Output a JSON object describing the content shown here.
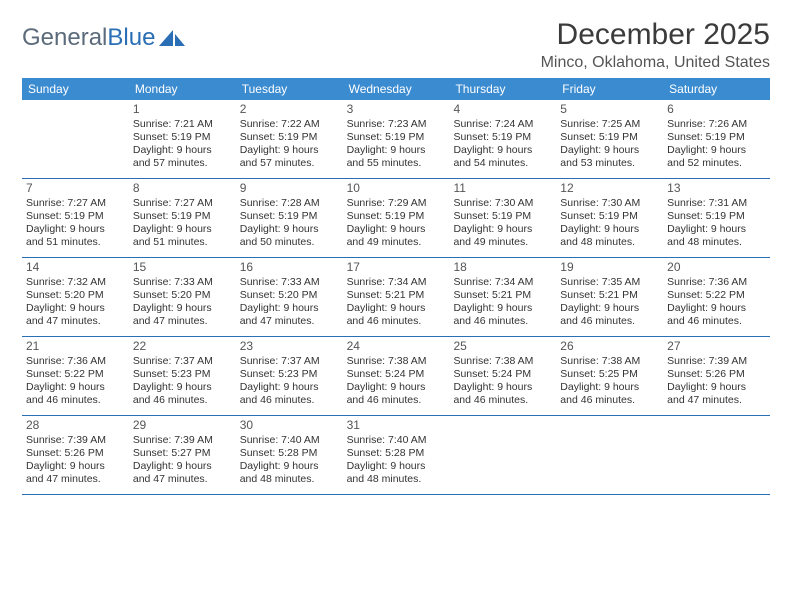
{
  "logo": {
    "part1": "General",
    "part2": "Blue"
  },
  "title": "December 2025",
  "location": "Minco, Oklahoma, United States",
  "header_color": "#3b8bd1",
  "border_color": "#2a6fb5",
  "weekdays": [
    "Sunday",
    "Monday",
    "Tuesday",
    "Wednesday",
    "Thursday",
    "Friday",
    "Saturday"
  ],
  "weeks": [
    [
      {
        "n": "",
        "sr": "",
        "ss": "",
        "dl": ""
      },
      {
        "n": "1",
        "sr": "Sunrise: 7:21 AM",
        "ss": "Sunset: 5:19 PM",
        "dl": "Daylight: 9 hours and 57 minutes."
      },
      {
        "n": "2",
        "sr": "Sunrise: 7:22 AM",
        "ss": "Sunset: 5:19 PM",
        "dl": "Daylight: 9 hours and 57 minutes."
      },
      {
        "n": "3",
        "sr": "Sunrise: 7:23 AM",
        "ss": "Sunset: 5:19 PM",
        "dl": "Daylight: 9 hours and 55 minutes."
      },
      {
        "n": "4",
        "sr": "Sunrise: 7:24 AM",
        "ss": "Sunset: 5:19 PM",
        "dl": "Daylight: 9 hours and 54 minutes."
      },
      {
        "n": "5",
        "sr": "Sunrise: 7:25 AM",
        "ss": "Sunset: 5:19 PM",
        "dl": "Daylight: 9 hours and 53 minutes."
      },
      {
        "n": "6",
        "sr": "Sunrise: 7:26 AM",
        "ss": "Sunset: 5:19 PM",
        "dl": "Daylight: 9 hours and 52 minutes."
      }
    ],
    [
      {
        "n": "7",
        "sr": "Sunrise: 7:27 AM",
        "ss": "Sunset: 5:19 PM",
        "dl": "Daylight: 9 hours and 51 minutes."
      },
      {
        "n": "8",
        "sr": "Sunrise: 7:27 AM",
        "ss": "Sunset: 5:19 PM",
        "dl": "Daylight: 9 hours and 51 minutes."
      },
      {
        "n": "9",
        "sr": "Sunrise: 7:28 AM",
        "ss": "Sunset: 5:19 PM",
        "dl": "Daylight: 9 hours and 50 minutes."
      },
      {
        "n": "10",
        "sr": "Sunrise: 7:29 AM",
        "ss": "Sunset: 5:19 PM",
        "dl": "Daylight: 9 hours and 49 minutes."
      },
      {
        "n": "11",
        "sr": "Sunrise: 7:30 AM",
        "ss": "Sunset: 5:19 PM",
        "dl": "Daylight: 9 hours and 49 minutes."
      },
      {
        "n": "12",
        "sr": "Sunrise: 7:30 AM",
        "ss": "Sunset: 5:19 PM",
        "dl": "Daylight: 9 hours and 48 minutes."
      },
      {
        "n": "13",
        "sr": "Sunrise: 7:31 AM",
        "ss": "Sunset: 5:19 PM",
        "dl": "Daylight: 9 hours and 48 minutes."
      }
    ],
    [
      {
        "n": "14",
        "sr": "Sunrise: 7:32 AM",
        "ss": "Sunset: 5:20 PM",
        "dl": "Daylight: 9 hours and 47 minutes."
      },
      {
        "n": "15",
        "sr": "Sunrise: 7:33 AM",
        "ss": "Sunset: 5:20 PM",
        "dl": "Daylight: 9 hours and 47 minutes."
      },
      {
        "n": "16",
        "sr": "Sunrise: 7:33 AM",
        "ss": "Sunset: 5:20 PM",
        "dl": "Daylight: 9 hours and 47 minutes."
      },
      {
        "n": "17",
        "sr": "Sunrise: 7:34 AM",
        "ss": "Sunset: 5:21 PM",
        "dl": "Daylight: 9 hours and 46 minutes."
      },
      {
        "n": "18",
        "sr": "Sunrise: 7:34 AM",
        "ss": "Sunset: 5:21 PM",
        "dl": "Daylight: 9 hours and 46 minutes."
      },
      {
        "n": "19",
        "sr": "Sunrise: 7:35 AM",
        "ss": "Sunset: 5:21 PM",
        "dl": "Daylight: 9 hours and 46 minutes."
      },
      {
        "n": "20",
        "sr": "Sunrise: 7:36 AM",
        "ss": "Sunset: 5:22 PM",
        "dl": "Daylight: 9 hours and 46 minutes."
      }
    ],
    [
      {
        "n": "21",
        "sr": "Sunrise: 7:36 AM",
        "ss": "Sunset: 5:22 PM",
        "dl": "Daylight: 9 hours and 46 minutes."
      },
      {
        "n": "22",
        "sr": "Sunrise: 7:37 AM",
        "ss": "Sunset: 5:23 PM",
        "dl": "Daylight: 9 hours and 46 minutes."
      },
      {
        "n": "23",
        "sr": "Sunrise: 7:37 AM",
        "ss": "Sunset: 5:23 PM",
        "dl": "Daylight: 9 hours and 46 minutes."
      },
      {
        "n": "24",
        "sr": "Sunrise: 7:38 AM",
        "ss": "Sunset: 5:24 PM",
        "dl": "Daylight: 9 hours and 46 minutes."
      },
      {
        "n": "25",
        "sr": "Sunrise: 7:38 AM",
        "ss": "Sunset: 5:24 PM",
        "dl": "Daylight: 9 hours and 46 minutes."
      },
      {
        "n": "26",
        "sr": "Sunrise: 7:38 AM",
        "ss": "Sunset: 5:25 PM",
        "dl": "Daylight: 9 hours and 46 minutes."
      },
      {
        "n": "27",
        "sr": "Sunrise: 7:39 AM",
        "ss": "Sunset: 5:26 PM",
        "dl": "Daylight: 9 hours and 47 minutes."
      }
    ],
    [
      {
        "n": "28",
        "sr": "Sunrise: 7:39 AM",
        "ss": "Sunset: 5:26 PM",
        "dl": "Daylight: 9 hours and 47 minutes."
      },
      {
        "n": "29",
        "sr": "Sunrise: 7:39 AM",
        "ss": "Sunset: 5:27 PM",
        "dl": "Daylight: 9 hours and 47 minutes."
      },
      {
        "n": "30",
        "sr": "Sunrise: 7:40 AM",
        "ss": "Sunset: 5:28 PM",
        "dl": "Daylight: 9 hours and 48 minutes."
      },
      {
        "n": "31",
        "sr": "Sunrise: 7:40 AM",
        "ss": "Sunset: 5:28 PM",
        "dl": "Daylight: 9 hours and 48 minutes."
      },
      {
        "n": "",
        "sr": "",
        "ss": "",
        "dl": ""
      },
      {
        "n": "",
        "sr": "",
        "ss": "",
        "dl": ""
      },
      {
        "n": "",
        "sr": "",
        "ss": "",
        "dl": ""
      }
    ]
  ]
}
